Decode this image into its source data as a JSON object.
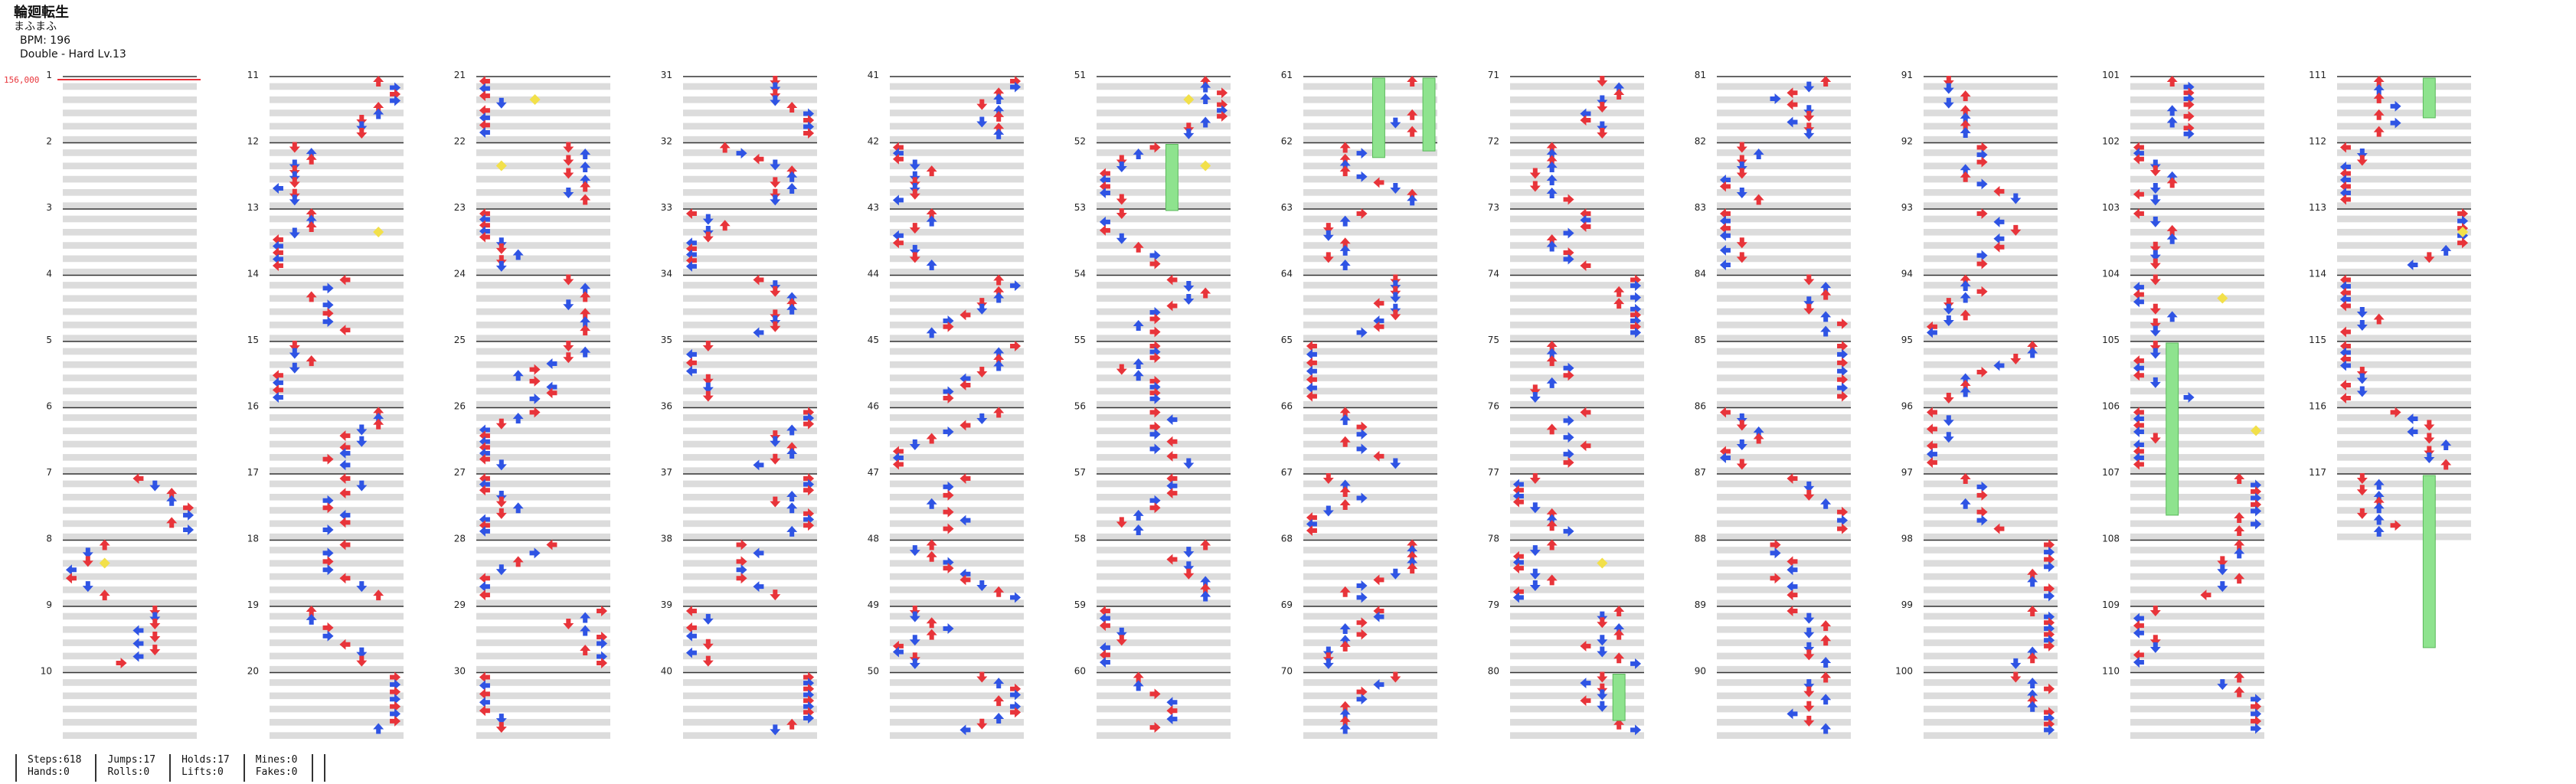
{
  "song": {
    "title": "輪廻転生",
    "artist": "まふまふ",
    "bpm_label": "BPM: 196",
    "difficulty_label": "Double - Hard Lv.13"
  },
  "score_label": "156,000",
  "measures": {
    "count": 117,
    "per_column": 10,
    "column_starts": [
      1,
      11,
      21,
      31,
      41,
      51,
      61,
      71,
      81,
      91,
      101,
      111
    ]
  },
  "colors": {
    "red_arrow": "#e8343a",
    "blue_arrow": "#2f54e4",
    "hold": "#8ee38e",
    "mine": "#f2e04a",
    "row_fill": "#dcdcdc",
    "measure_line": "#333333"
  },
  "stats": [
    {
      "a": "Steps:618",
      "b": "Hands:0"
    },
    {
      "a": "Jumps:17",
      "b": "Rolls:0"
    },
    {
      "a": "Holds:17",
      "b": "Lifts:0"
    },
    {
      "a": "Mines:0",
      "b": "Fakes:0"
    },
    {
      "a": "",
      "b": ""
    }
  ]
}
